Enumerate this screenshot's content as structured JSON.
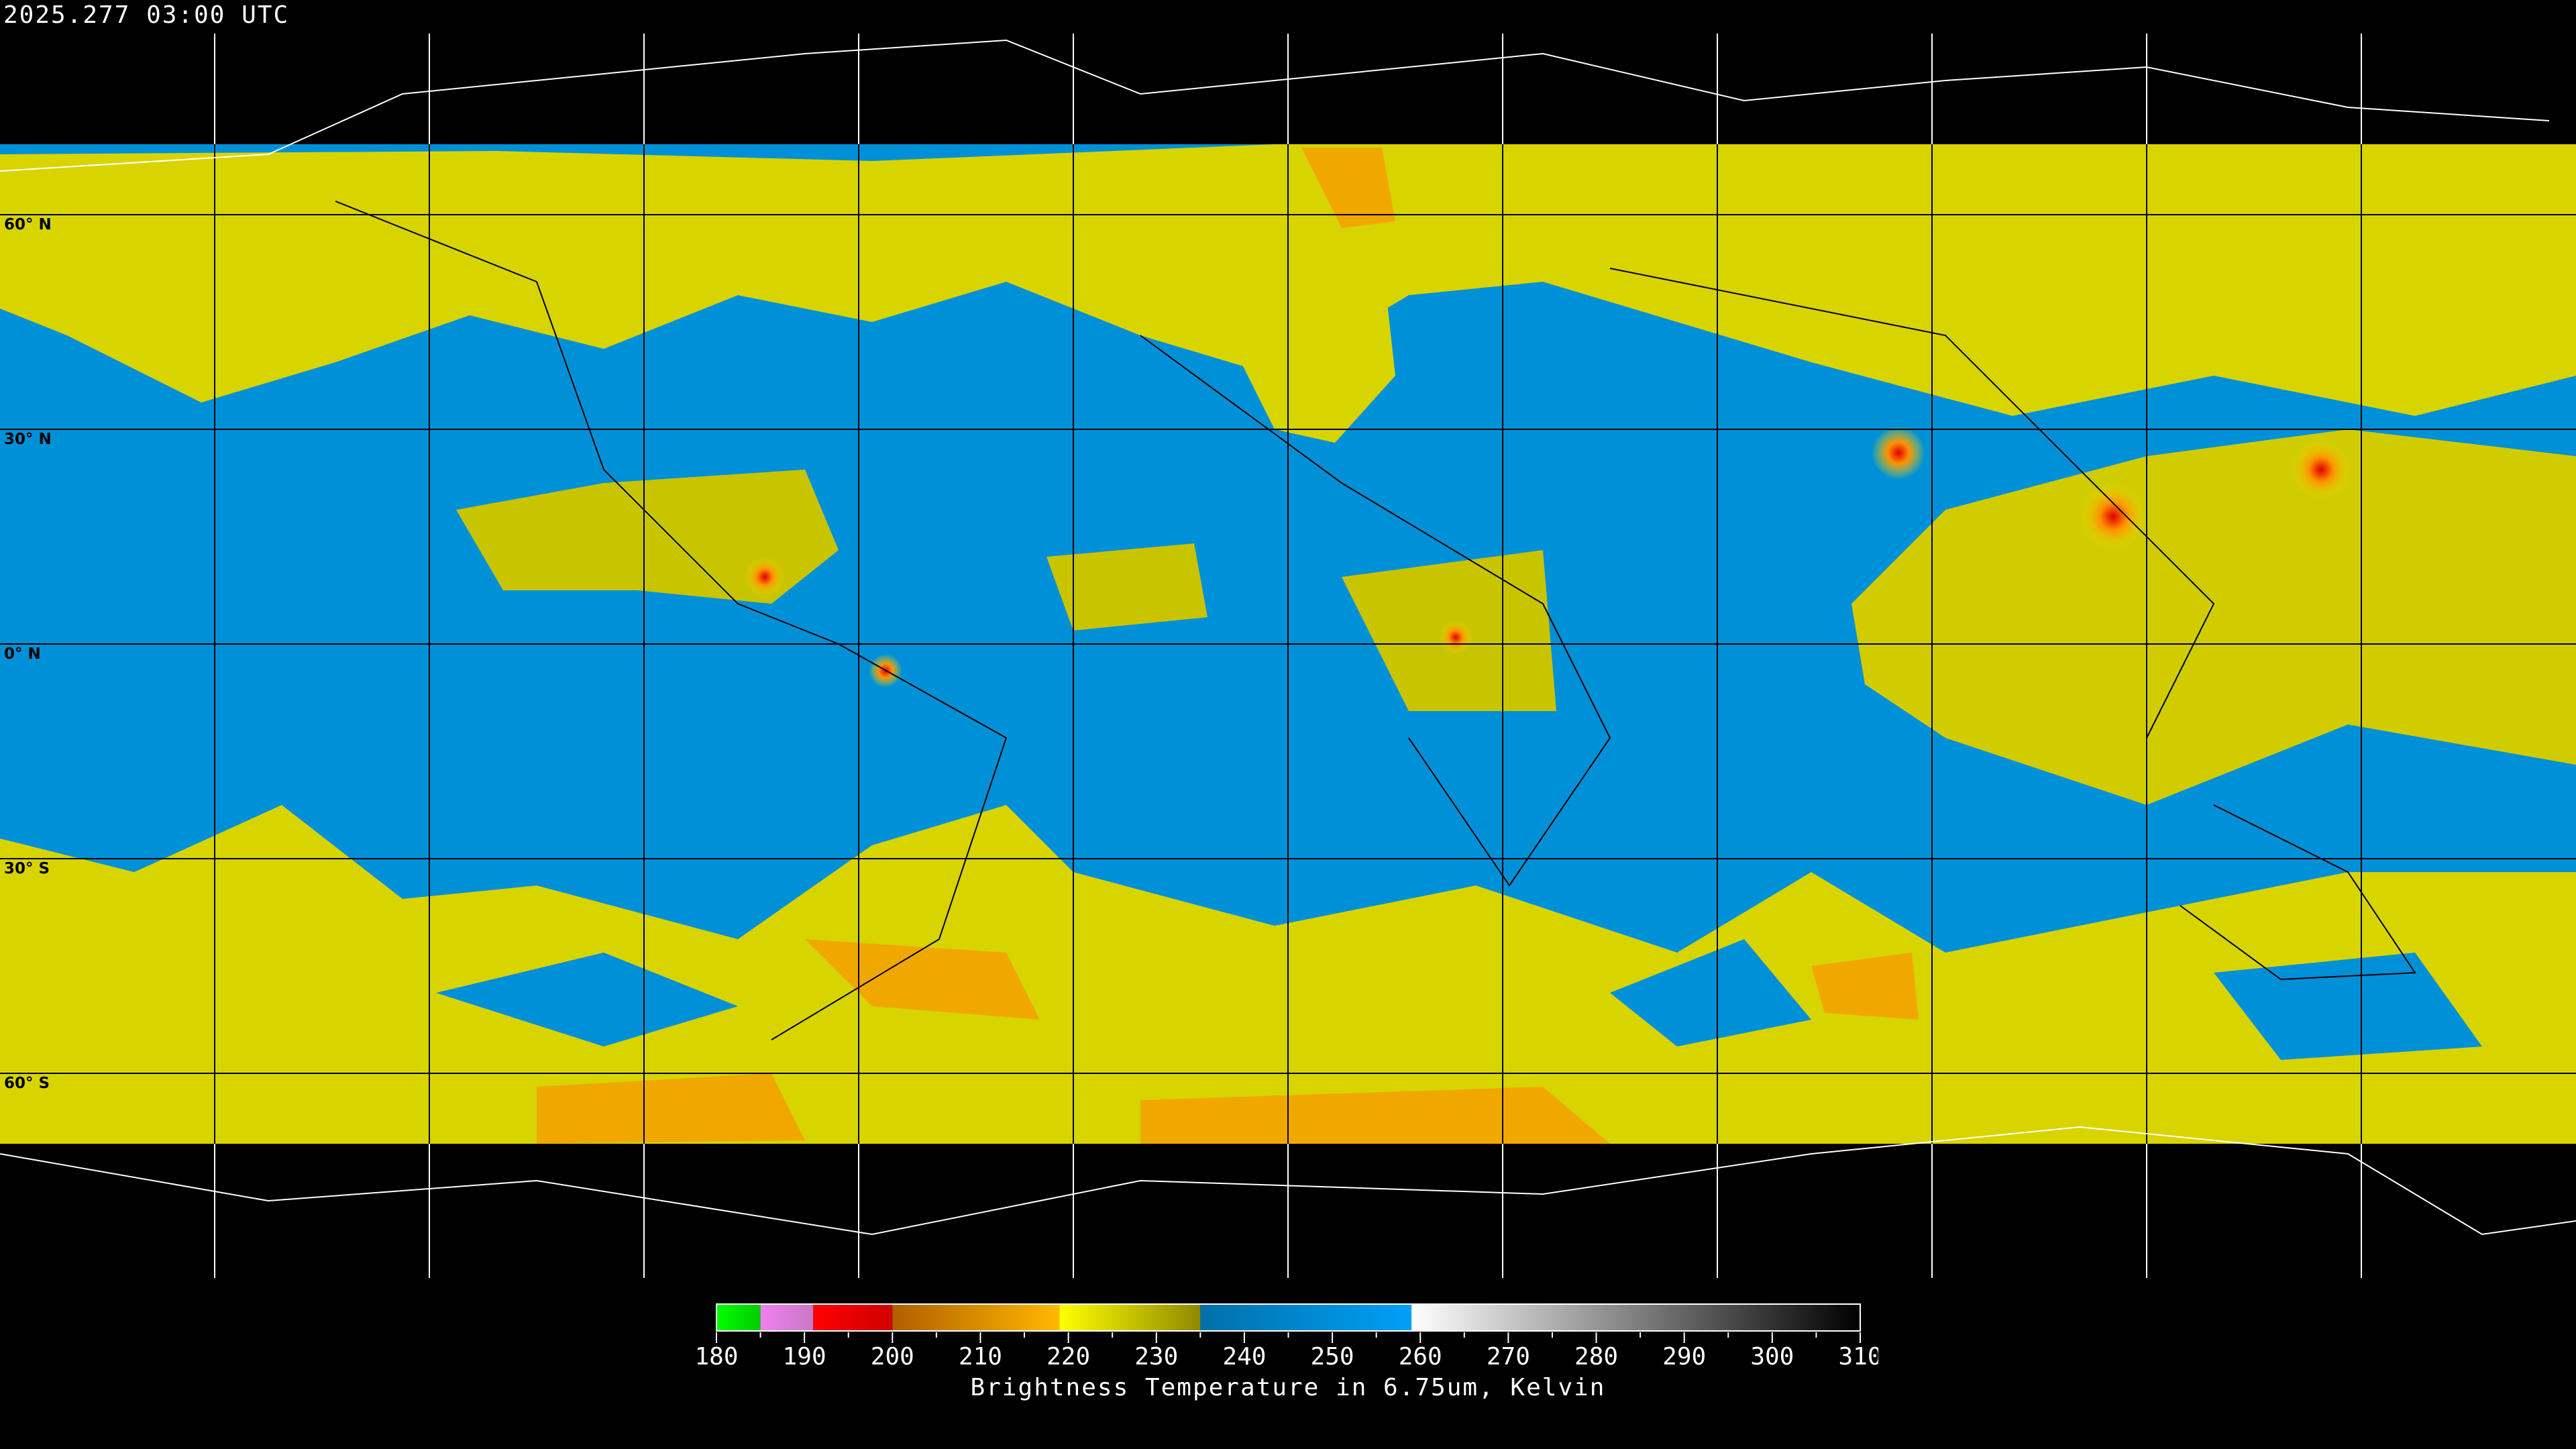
{
  "header": {
    "timestamp": "2025.277 03:00 UTC"
  },
  "map": {
    "projection": "equirectangular",
    "lat_labels": [
      "60° N",
      "30° N",
      "0° N",
      "30° S",
      "60° S"
    ],
    "gridline_spacing_degrees": 30,
    "storm_color": "#e00000",
    "cold_cloud_color": "#e8e000",
    "moist_color": "#f0a000",
    "dry_color": "#0090d8"
  },
  "colorbar": {
    "title": "Brightness Temperature in 6.75um, Kelvin",
    "min": 180,
    "max": 310,
    "tick_labels": [
      "180",
      "190",
      "200",
      "210",
      "220",
      "230",
      "240",
      "250",
      "260",
      "270",
      "280",
      "290",
      "300",
      "310"
    ],
    "segments": [
      {
        "from": 180,
        "to": 185,
        "c0": "#00ff00",
        "c1": "#00cc00"
      },
      {
        "from": 185,
        "to": 191,
        "c0": "#f080f0",
        "c1": "#c878c8"
      },
      {
        "from": 191,
        "to": 200,
        "c0": "#ff0000",
        "c1": "#d00000"
      },
      {
        "from": 200,
        "to": 219,
        "c0": "#b06000",
        "c1": "#ffb800"
      },
      {
        "from": 219,
        "to": 235,
        "c0": "#ffff00",
        "c1": "#908800"
      },
      {
        "from": 235,
        "to": 259,
        "c0": "#0070a8",
        "c1": "#00a0f8"
      },
      {
        "from": 259,
        "to": 310,
        "c0": "#ffffff",
        "c1": "#000000"
      }
    ]
  }
}
